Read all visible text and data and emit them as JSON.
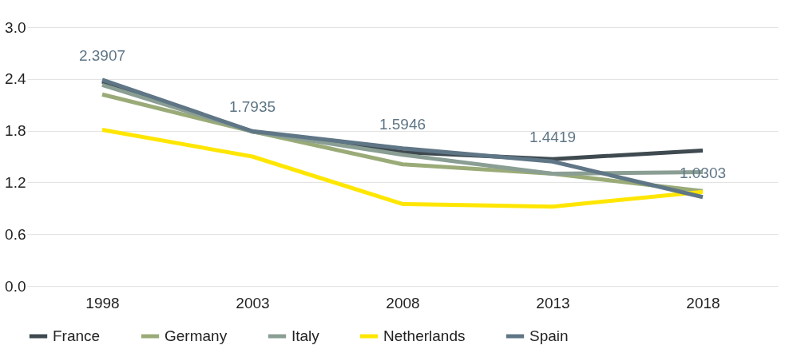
{
  "chart_data": {
    "type": "line",
    "categories": [
      "1998",
      "2003",
      "2008",
      "2013",
      "2018"
    ],
    "ylim": [
      0,
      3
    ],
    "yticks": [
      {
        "value": 0,
        "label": "0.0"
      },
      0.6,
      1.2,
      1.8,
      2.4,
      {
        "value": 3,
        "label": "3.0"
      }
    ],
    "grid": "y",
    "legend": "bottom",
    "marker": "none",
    "line_style": "solid",
    "series": [
      {
        "name": "France",
        "color": "#3f4a50",
        "values": [
          2.37,
          1.79,
          1.55,
          1.47,
          1.57
        ]
      },
      {
        "name": "Germany",
        "color": "#9aab78",
        "values": [
          2.22,
          1.79,
          1.41,
          1.3,
          1.1
        ]
      },
      {
        "name": "Italy",
        "color": "#8a9e94",
        "values": [
          2.33,
          1.79,
          1.52,
          1.3,
          1.32
        ]
      },
      {
        "name": "Netherlands",
        "color": "#ffe600",
        "values": [
          1.81,
          1.5,
          0.95,
          0.92,
          1.09
        ]
      },
      {
        "name": "Spain",
        "color": "#5f7686",
        "values": [
          2.3907,
          1.7935,
          1.5946,
          1.4419,
          1.0303
        ],
        "value_labels": [
          "2.3907",
          "1.7935",
          "1.5946",
          "1.4419",
          "1.0303"
        ]
      }
    ]
  }
}
